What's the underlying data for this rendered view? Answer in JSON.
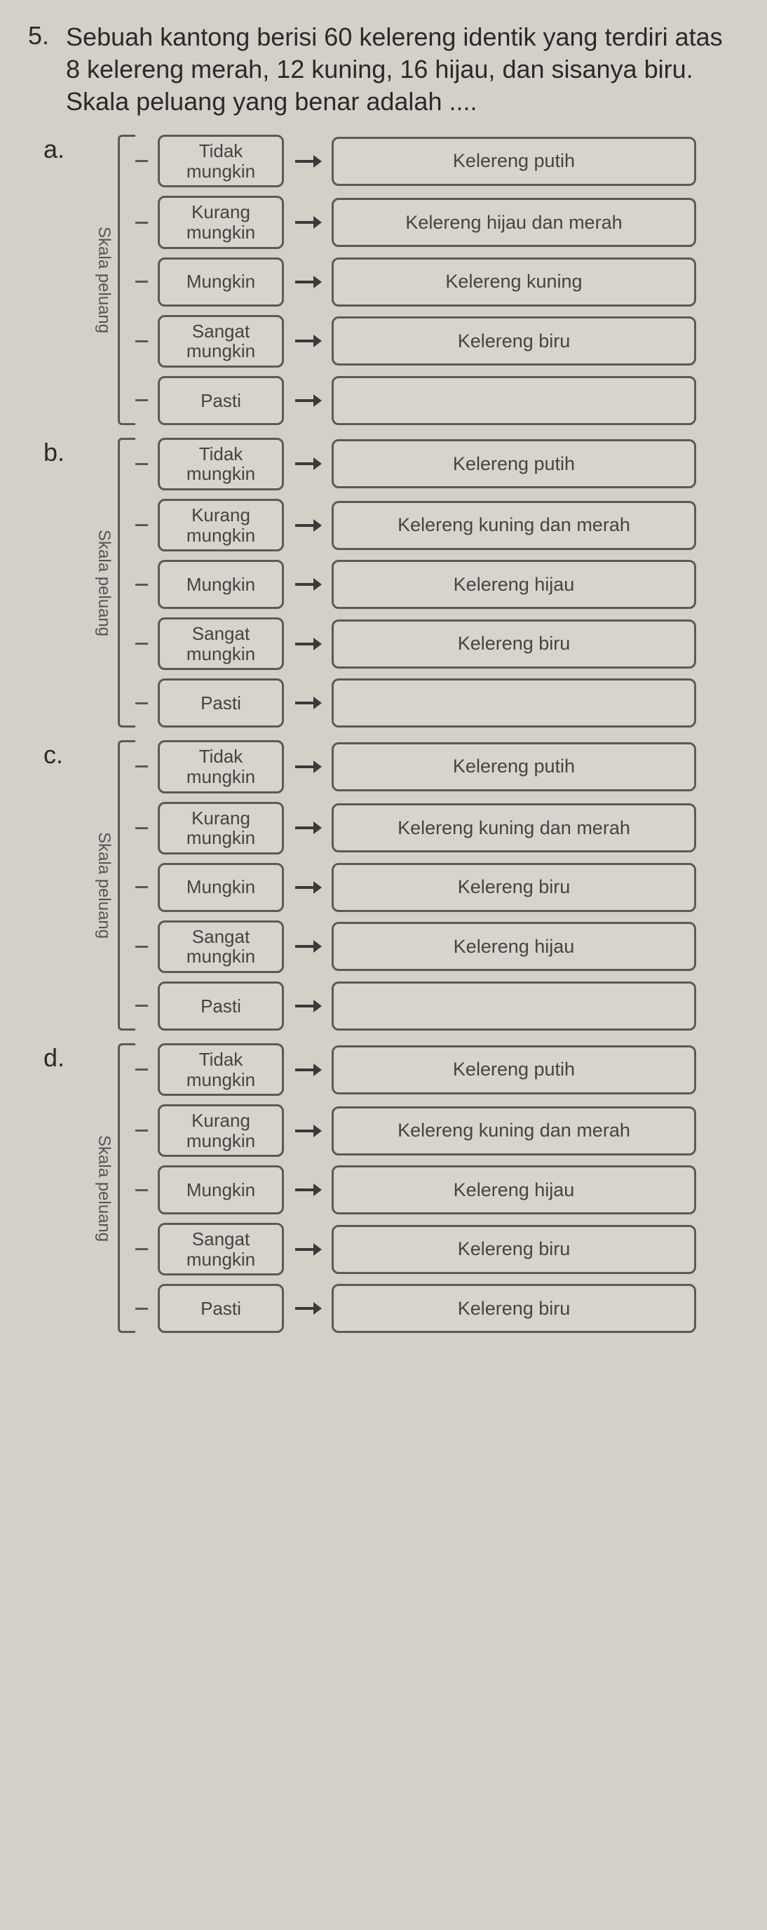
{
  "question": {
    "number": "5.",
    "text": "Sebuah kantong berisi 60 kelereng identik yang terdiri atas 8 kelereng merah, 12 kuning, 16 hijau, dan sisanya biru. Skala peluang yang benar adalah ...."
  },
  "yAxisLabel": "Skala peluang",
  "scaleLabels": {
    "tidak": "Tidak mungkin",
    "kurang": "Kurang mungkin",
    "mungkin": "Mungkin",
    "sangat": "Sangat mungkin",
    "pasti": "Pasti"
  },
  "options": [
    {
      "letter": "a.",
      "rows": [
        {
          "scale": "tidak",
          "result": "Kelereng putih"
        },
        {
          "scale": "kurang",
          "result": "Kelereng hijau dan merah"
        },
        {
          "scale": "mungkin",
          "result": "Kelereng kuning"
        },
        {
          "scale": "sangat",
          "result": "Kelereng biru"
        },
        {
          "scale": "pasti",
          "result": ""
        }
      ]
    },
    {
      "letter": "b.",
      "rows": [
        {
          "scale": "tidak",
          "result": "Kelereng putih"
        },
        {
          "scale": "kurang",
          "result": "Kelereng kuning dan merah"
        },
        {
          "scale": "mungkin",
          "result": "Kelereng hijau"
        },
        {
          "scale": "sangat",
          "result": "Kelereng biru"
        },
        {
          "scale": "pasti",
          "result": ""
        }
      ]
    },
    {
      "letter": "c.",
      "rows": [
        {
          "scale": "tidak",
          "result": "Kelereng putih"
        },
        {
          "scale": "kurang",
          "result": "Kelereng kuning dan merah"
        },
        {
          "scale": "mungkin",
          "result": "Kelereng biru"
        },
        {
          "scale": "sangat",
          "result": "Kelereng hijau"
        },
        {
          "scale": "pasti",
          "result": ""
        }
      ]
    },
    {
      "letter": "d.",
      "rows": [
        {
          "scale": "tidak",
          "result": "Kelereng putih"
        },
        {
          "scale": "kurang",
          "result": "Kelereng kuning dan merah"
        },
        {
          "scale": "mungkin",
          "result": "Kelereng hijau"
        },
        {
          "scale": "sangat",
          "result": "Kelereng biru"
        },
        {
          "scale": "pasti",
          "result": "Kelereng biru"
        }
      ]
    }
  ],
  "colors": {
    "background": "#d4d0c8",
    "boxBorder": "#5a5a5a",
    "text": "#2a2a2a",
    "boxText": "#444444"
  }
}
